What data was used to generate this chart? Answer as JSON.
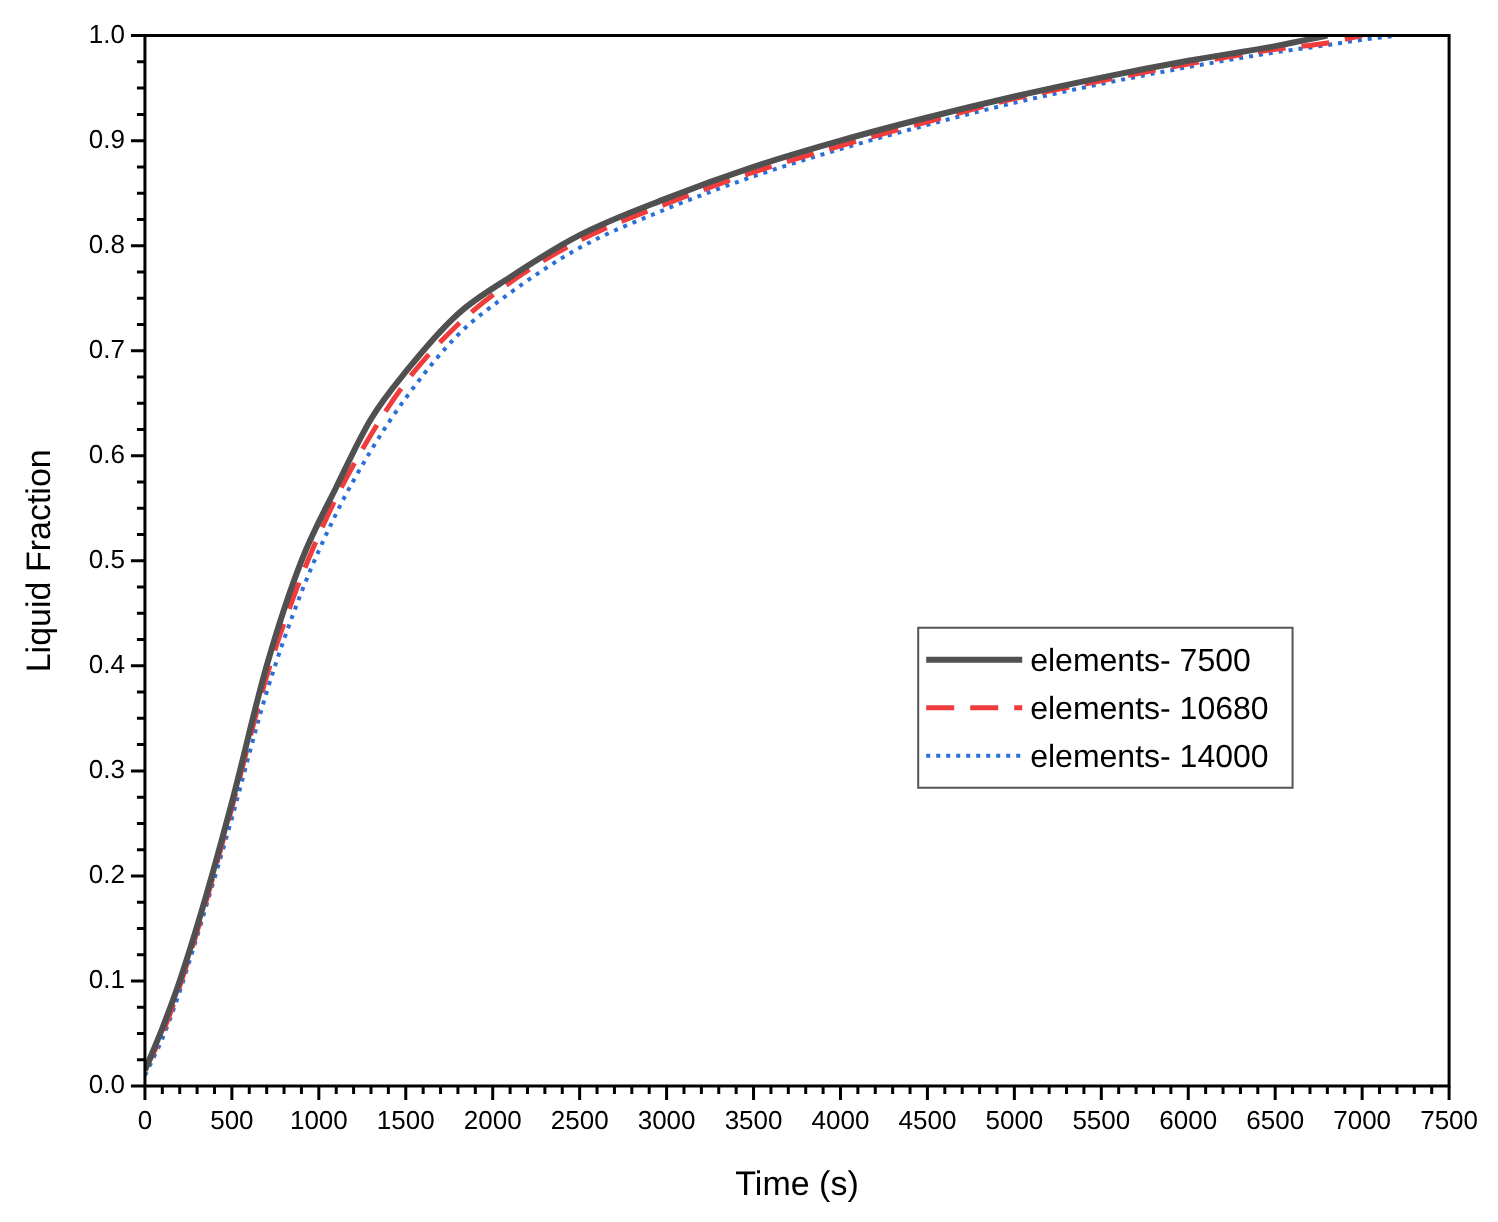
{
  "chart_data": {
    "type": "line",
    "xlabel": "Time (s)",
    "ylabel": "Liquid Fraction",
    "xlim": [
      0,
      7500
    ],
    "ylim": [
      0,
      1
    ],
    "xticks": [
      0,
      {
        "value": 100,
        "label": null
      },
      {
        "value": 200,
        "label": null
      },
      {
        "value": 300,
        "label": null
      },
      {
        "value": 400,
        "label": null
      },
      500,
      {
        "value": 600,
        "label": null
      },
      {
        "value": 700,
        "label": null
      },
      {
        "value": 800,
        "label": null
      },
      {
        "value": 900,
        "label": null
      },
      1000,
      {
        "value": 1100,
        "label": null
      },
      {
        "value": 1200,
        "label": null
      },
      {
        "value": 1300,
        "label": null
      },
      {
        "value": 1400,
        "label": null
      },
      1500,
      {
        "value": 1600,
        "label": null
      },
      {
        "value": 1700,
        "label": null
      },
      {
        "value": 1800,
        "label": null
      },
      {
        "value": 1900,
        "label": null
      },
      2000,
      {
        "value": 2100,
        "label": null
      },
      {
        "value": 2200,
        "label": null
      },
      {
        "value": 2300,
        "label": null
      },
      {
        "value": 2400,
        "label": null
      },
      2500,
      {
        "value": 2600,
        "label": null
      },
      {
        "value": 2700,
        "label": null
      },
      {
        "value": 2800,
        "label": null
      },
      {
        "value": 2900,
        "label": null
      },
      3000,
      {
        "value": 3100,
        "label": null
      },
      {
        "value": 3200,
        "label": null
      },
      {
        "value": 3300,
        "label": null
      },
      {
        "value": 3400,
        "label": null
      },
      3500,
      {
        "value": 3600,
        "label": null
      },
      {
        "value": 3700,
        "label": null
      },
      {
        "value": 3800,
        "label": null
      },
      {
        "value": 3900,
        "label": null
      },
      4000,
      {
        "value": 4100,
        "label": null
      },
      {
        "value": 4200,
        "label": null
      },
      {
        "value": 4300,
        "label": null
      },
      {
        "value": 4400,
        "label": null
      },
      4500,
      {
        "value": 4600,
        "label": null
      },
      {
        "value": 4700,
        "label": null
      },
      {
        "value": 4800,
        "label": null
      },
      {
        "value": 4900,
        "label": null
      },
      5000,
      {
        "value": 5100,
        "label": null
      },
      {
        "value": 5200,
        "label": null
      },
      {
        "value": 5300,
        "label": null
      },
      {
        "value": 5400,
        "label": null
      },
      5500,
      {
        "value": 5600,
        "label": null
      },
      {
        "value": 5700,
        "label": null
      },
      {
        "value": 5800,
        "label": null
      },
      {
        "value": 5900,
        "label": null
      },
      6000,
      {
        "value": 6100,
        "label": null
      },
      {
        "value": 6200,
        "label": null
      },
      {
        "value": 6300,
        "label": null
      },
      {
        "value": 6400,
        "label": null
      },
      6500,
      {
        "value": 6600,
        "label": null
      },
      {
        "value": 6700,
        "label": null
      },
      {
        "value": 6800,
        "label": null
      },
      {
        "value": 6900,
        "label": null
      },
      7000,
      {
        "value": 7100,
        "label": null
      },
      {
        "value": 7200,
        "label": null
      },
      {
        "value": 7300,
        "label": null
      },
      {
        "value": 7400,
        "label": null
      },
      7500
    ],
    "yticks": [
      {
        "value": 0,
        "label": "0.0"
      },
      {
        "value": 0.025,
        "label": null
      },
      {
        "value": 0.05,
        "label": null
      },
      {
        "value": 0.075,
        "label": null
      },
      {
        "value": 0.1,
        "label": "0.1"
      },
      {
        "value": 0.125,
        "label": null
      },
      {
        "value": 0.15,
        "label": null
      },
      {
        "value": 0.175,
        "label": null
      },
      {
        "value": 0.2,
        "label": "0.2"
      },
      {
        "value": 0.225,
        "label": null
      },
      {
        "value": 0.25,
        "label": null
      },
      {
        "value": 0.275,
        "label": null
      },
      {
        "value": 0.3,
        "label": "0.3"
      },
      {
        "value": 0.325,
        "label": null
      },
      {
        "value": 0.35,
        "label": null
      },
      {
        "value": 0.375,
        "label": null
      },
      {
        "value": 0.4,
        "label": "0.4"
      },
      {
        "value": 0.425,
        "label": null
      },
      {
        "value": 0.45,
        "label": null
      },
      {
        "value": 0.475,
        "label": null
      },
      {
        "value": 0.5,
        "label": "0.5"
      },
      {
        "value": 0.525,
        "label": null
      },
      {
        "value": 0.55,
        "label": null
      },
      {
        "value": 0.575,
        "label": null
      },
      {
        "value": 0.6,
        "label": "0.6"
      },
      {
        "value": 0.625,
        "label": null
      },
      {
        "value": 0.65,
        "label": null
      },
      {
        "value": 0.675,
        "label": null
      },
      {
        "value": 0.7,
        "label": "0.7"
      },
      {
        "value": 0.725,
        "label": null
      },
      {
        "value": 0.75,
        "label": null
      },
      {
        "value": 0.775,
        "label": null
      },
      {
        "value": 0.8,
        "label": "0.8"
      },
      {
        "value": 0.825,
        "label": null
      },
      {
        "value": 0.85,
        "label": null
      },
      {
        "value": 0.875,
        "label": null
      },
      {
        "value": 0.9,
        "label": "0.9"
      },
      {
        "value": 0.925,
        "label": null
      },
      {
        "value": 0.95,
        "label": null
      },
      {
        "value": 0.975,
        "label": null
      },
      {
        "value": 1,
        "label": "1.0"
      }
    ],
    "grid": false,
    "legend": "right",
    "marker": "none",
    "series": [
      {
        "name": "elements- 7500",
        "color": "#505050",
        "line_style": "solid",
        "x": [
          0,
          100,
          200,
          350,
          500,
          700,
          900,
          1100,
          1300,
          1500,
          1800,
          2100,
          2500,
          3000,
          3500,
          4000,
          4500,
          5000,
          5500,
          6000,
          6500,
          6800
        ],
        "values": [
          0.015,
          0.055,
          0.1,
          0.18,
          0.27,
          0.4,
          0.5,
          0.57,
          0.635,
          0.68,
          0.735,
          0.77,
          0.81,
          0.845,
          0.875,
          0.9,
          0.922,
          0.942,
          0.96,
          0.976,
          0.99,
          1.0
        ]
      },
      {
        "name": "elements- 10680",
        "color": "#f03c3c",
        "line_style": "dashed",
        "x": [
          0,
          100,
          200,
          350,
          500,
          700,
          900,
          1100,
          1300,
          1500,
          1800,
          2100,
          2500,
          3000,
          3500,
          4000,
          4500,
          5000,
          5500,
          6000,
          6500,
          6800,
          7000
        ],
        "values": [
          0.015,
          0.05,
          0.095,
          0.175,
          0.265,
          0.39,
          0.485,
          0.56,
          0.62,
          0.67,
          0.725,
          0.765,
          0.805,
          0.84,
          0.87,
          0.895,
          0.918,
          0.94,
          0.957,
          0.973,
          0.987,
          0.993,
          1.0
        ]
      },
      {
        "name": "elements- 14000",
        "color": "#2a6fd6",
        "line_style": "dotted",
        "x": [
          0,
          100,
          200,
          350,
          500,
          700,
          900,
          1100,
          1300,
          1500,
          1800,
          2100,
          2500,
          3000,
          3500,
          4000,
          4500,
          5000,
          5500,
          6000,
          6500,
          6800,
          7000,
          7200
        ],
        "values": [
          0.01,
          0.045,
          0.09,
          0.17,
          0.255,
          0.375,
          0.47,
          0.545,
          0.605,
          0.655,
          0.715,
          0.755,
          0.798,
          0.835,
          0.866,
          0.892,
          0.915,
          0.936,
          0.954,
          0.97,
          0.984,
          0.991,
          0.996,
          1.0
        ]
      }
    ]
  }
}
